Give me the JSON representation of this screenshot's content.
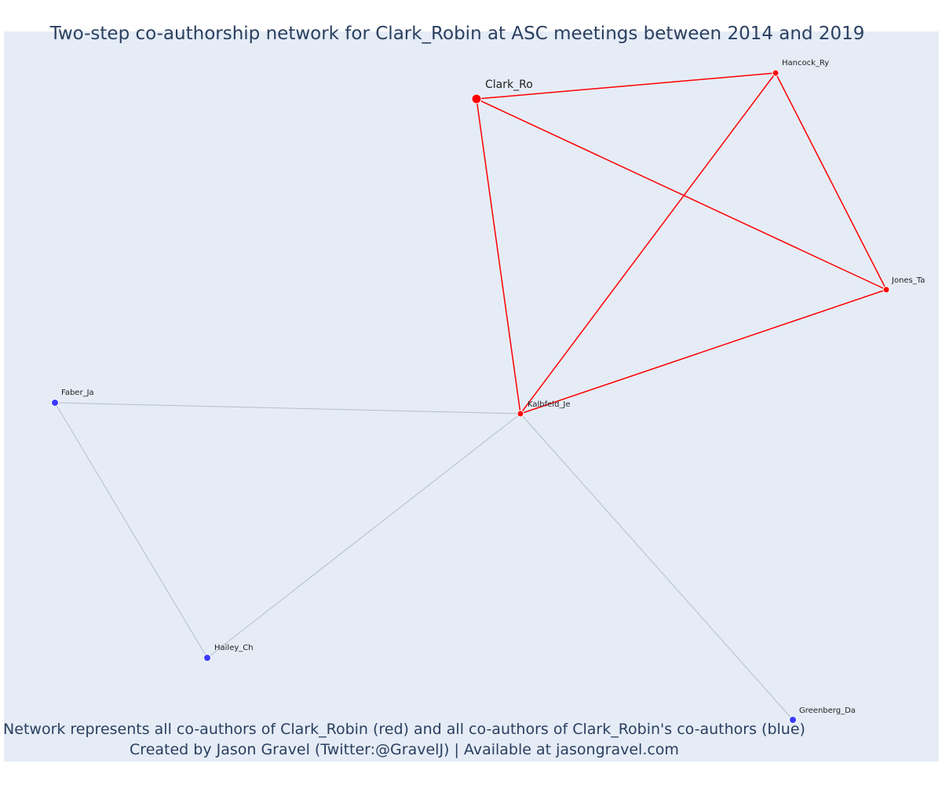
{
  "title": "Two-step co-authorship network for Clark_Robin at ASC meetings between 2014 and 2019",
  "caption": {
    "line1": "Network represents all co-authors of Clark_Robin (red) and all co-authors of Clark_Robin's co-authors (blue)",
    "line2": "Created by Jason Gravel (Twitter:@GravelJ) | Available at jasongravel.com"
  },
  "colors": {
    "first_step": "#ff0000",
    "second_step": "#3b3bff",
    "first_step_edge": "#ff0000",
    "second_step_edge": "#b7bccb",
    "background": "#e5ecf6",
    "title": "#2a3f5f"
  },
  "nodes": [
    {
      "id": "Clark_Ro",
      "label": "Clark_Ro",
      "group": "focal"
    },
    {
      "id": "Hancock_Ry",
      "label": "Hancock_Ry",
      "group": "first"
    },
    {
      "id": "Jones_Ta",
      "label": "Jones_Ta",
      "group": "first"
    },
    {
      "id": "Kalbfeld_Je",
      "label": "Kalbfeld_Je",
      "group": "first"
    },
    {
      "id": "Faber_Ja",
      "label": "Faber_Ja",
      "group": "second"
    },
    {
      "id": "Hailey_Ch",
      "label": "Hailey_Ch",
      "group": "second"
    },
    {
      "id": "Greenberg_Da",
      "label": "Greenberg_Da",
      "group": "second"
    }
  ],
  "edges": [
    {
      "source": "Clark_Ro",
      "target": "Hancock_Ry",
      "type": "first"
    },
    {
      "source": "Clark_Ro",
      "target": "Jones_Ta",
      "type": "first"
    },
    {
      "source": "Clark_Ro",
      "target": "Kalbfeld_Je",
      "type": "first"
    },
    {
      "source": "Hancock_Ry",
      "target": "Jones_Ta",
      "type": "first"
    },
    {
      "source": "Hancock_Ry",
      "target": "Kalbfeld_Je",
      "type": "first"
    },
    {
      "source": "Jones_Ta",
      "target": "Kalbfeld_Je",
      "type": "first"
    },
    {
      "source": "Faber_Ja",
      "target": "Kalbfeld_Je",
      "type": "second"
    },
    {
      "source": "Faber_Ja",
      "target": "Hailey_Ch",
      "type": "second"
    },
    {
      "source": "Hailey_Ch",
      "target": "Kalbfeld_Je",
      "type": "second"
    },
    {
      "source": "Greenberg_Da",
      "target": "Kalbfeld_Je",
      "type": "second"
    }
  ]
}
